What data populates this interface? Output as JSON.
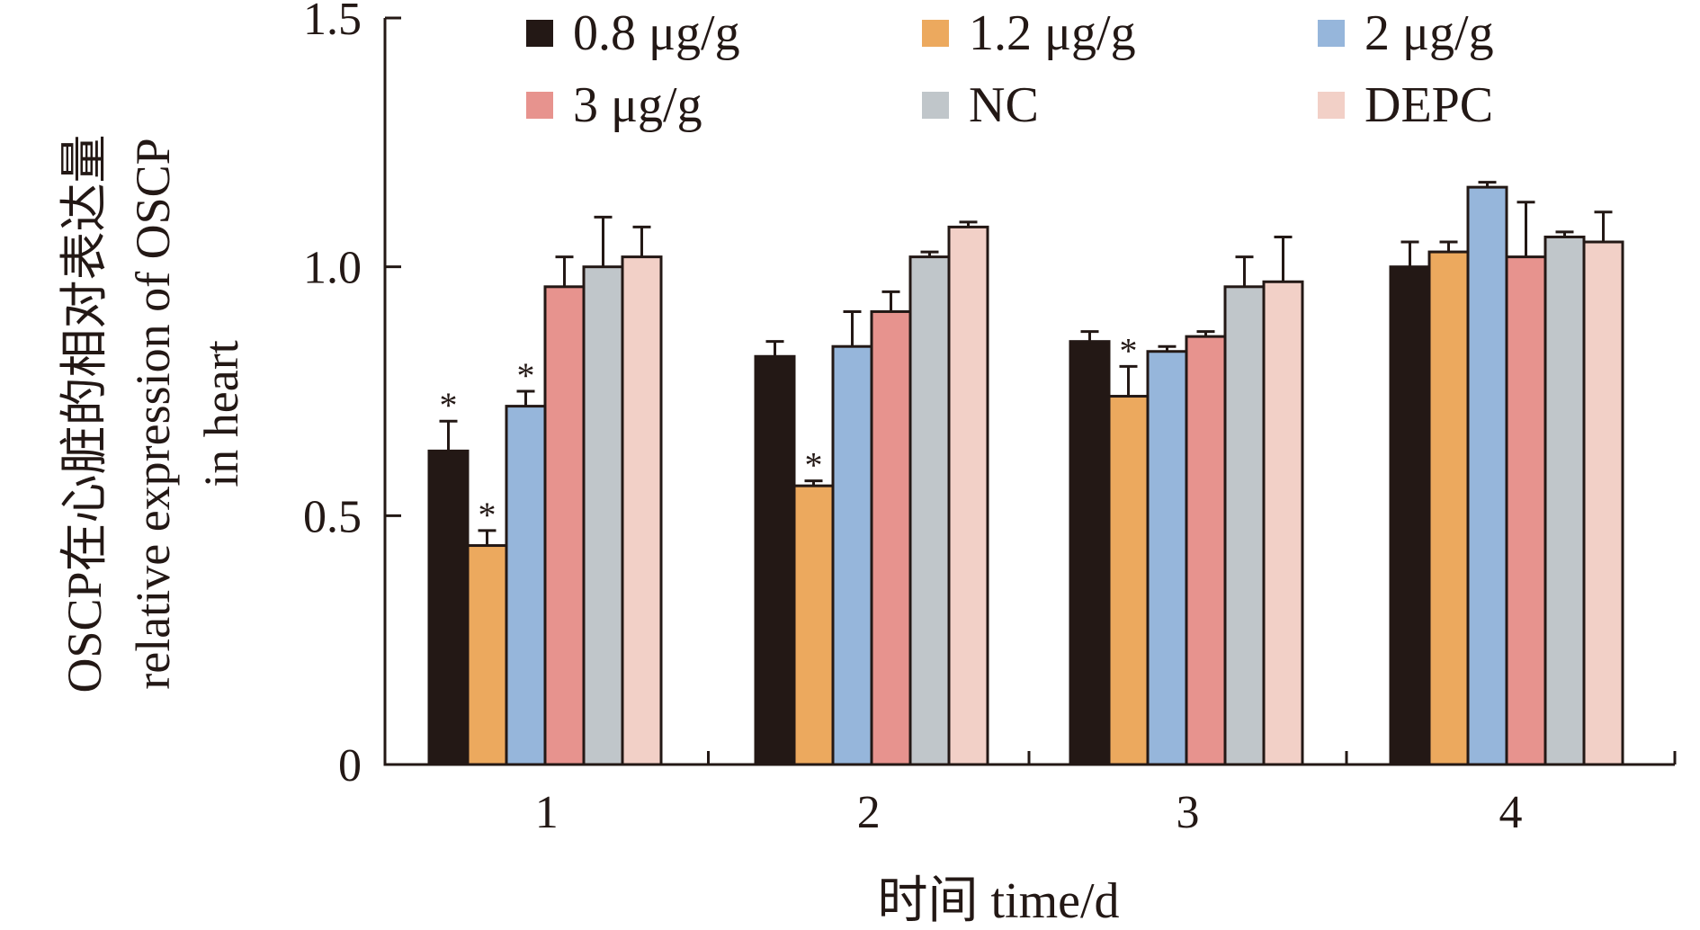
{
  "chart_data": {
    "type": "bar",
    "categories": [
      "1",
      "2",
      "3",
      "4"
    ],
    "xlabel": "时间 time/d",
    "ylabel_lines": [
      "OSCP在心脏的相对表达量",
      "relative expression of OSCP",
      "in heart"
    ],
    "ylim": [
      0,
      1.5
    ],
    "yticks": [
      "0",
      "0.5",
      "1.0",
      "1.5"
    ],
    "grid": false,
    "legend_position": "top",
    "series": [
      {
        "name": "0.8 μg/g",
        "color": "#231815",
        "values": [
          0.63,
          0.82,
          0.85,
          1.0
        ],
        "errors": [
          0.06,
          0.03,
          0.02,
          0.05
        ],
        "sig": [
          true,
          false,
          false,
          false
        ]
      },
      {
        "name": "1.2 μg/g",
        "color": "#eca95e",
        "values": [
          0.44,
          0.56,
          0.74,
          1.03
        ],
        "errors": [
          0.03,
          0.01,
          0.06,
          0.02
        ],
        "sig": [
          true,
          true,
          true,
          false
        ]
      },
      {
        "name": "2 μg/g",
        "color": "#96b6db",
        "values": [
          0.72,
          0.84,
          0.83,
          1.16
        ],
        "errors": [
          0.03,
          0.07,
          0.01,
          0.01
        ],
        "sig": [
          true,
          false,
          false,
          false
        ]
      },
      {
        "name": "3 μg/g",
        "color": "#e7938e",
        "values": [
          0.96,
          0.91,
          0.86,
          1.02
        ],
        "errors": [
          0.06,
          0.04,
          0.01,
          0.11
        ],
        "sig": [
          false,
          false,
          false,
          false
        ]
      },
      {
        "name": "NC",
        "color": "#c0c6ca",
        "values": [
          1.0,
          1.02,
          0.96,
          1.06
        ],
        "errors": [
          0.1,
          0.01,
          0.06,
          0.01
        ],
        "sig": [
          false,
          false,
          false,
          false
        ]
      },
      {
        "name": "DEPC",
        "color": "#f2d0c7",
        "values": [
          1.02,
          1.08,
          0.97,
          1.05
        ],
        "errors": [
          0.06,
          0.01,
          0.09,
          0.06
        ],
        "sig": [
          false,
          false,
          false,
          false
        ]
      }
    ],
    "sig_marker": "*"
  }
}
